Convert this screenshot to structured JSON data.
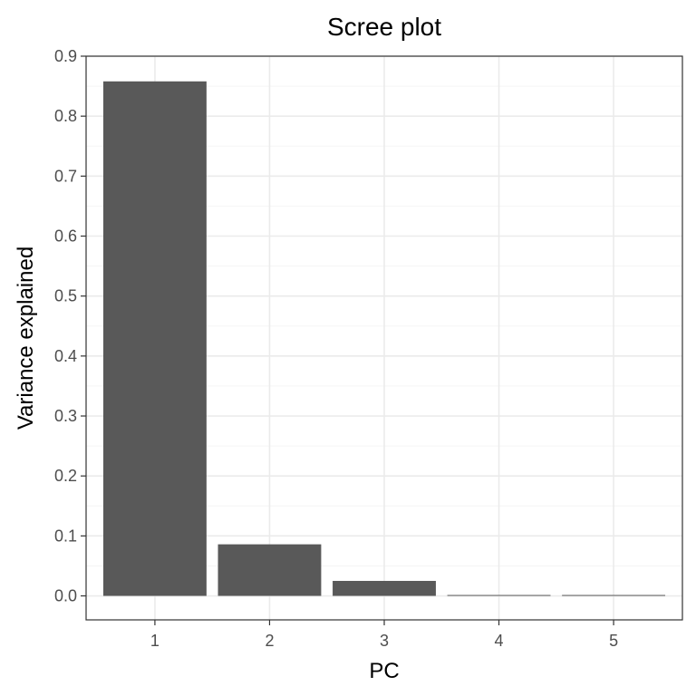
{
  "chart_data": {
    "type": "bar",
    "title": "Scree plot",
    "xlabel": "PC",
    "ylabel": "Variance explained",
    "categories": [
      "1",
      "2",
      "3",
      "4",
      "5"
    ],
    "values": [
      0.858,
      0.086,
      0.025,
      0.0015,
      0.0015
    ],
    "ylim": [
      -0.04,
      0.9
    ],
    "yticks": [
      0.0,
      0.1,
      0.2,
      0.3,
      0.4,
      0.5,
      0.6,
      0.7,
      0.8,
      0.9
    ],
    "ytick_labels": [
      "0.0",
      "0.1",
      "0.2",
      "0.3",
      "0.4",
      "0.5",
      "0.6",
      "0.7",
      "0.8",
      "0.9"
    ],
    "grid": true,
    "bar_color": "#595959",
    "legend": "none"
  }
}
